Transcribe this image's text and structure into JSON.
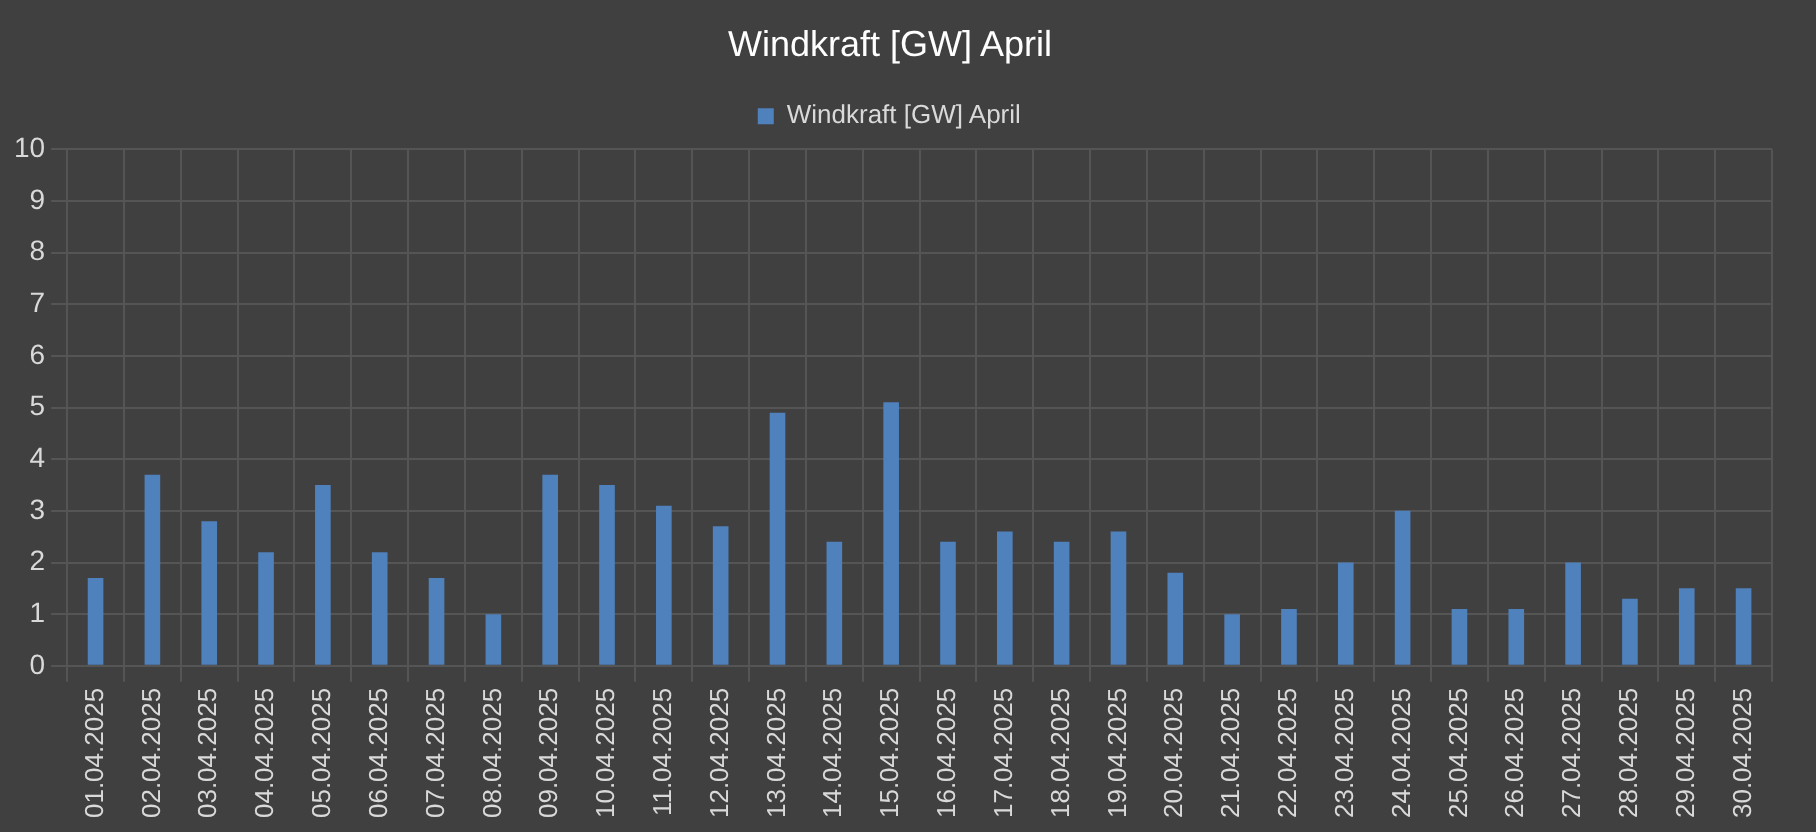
{
  "chart_data": {
    "type": "bar",
    "title": "Windkraft [GW] April",
    "categories": [
      "01.04.2025",
      "02.04.2025",
      "03.04.2025",
      "04.04.2025",
      "05.04.2025",
      "06.04.2025",
      "07.04.2025",
      "08.04.2025",
      "09.04.2025",
      "10.04.2025",
      "11.04.2025",
      "12.04.2025",
      "13.04.2025",
      "14.04.2025",
      "15.04.2025",
      "16.04.2025",
      "17.04.2025",
      "18.04.2025",
      "19.04.2025",
      "20.04.2025",
      "21.04.2025",
      "22.04.2025",
      "23.04.2025",
      "24.04.2025",
      "25.04.2025",
      "26.04.2025",
      "27.04.2025",
      "28.04.2025",
      "29.04.2025",
      "30.04.2025"
    ],
    "series": [
      {
        "name": "Windkraft [GW] April",
        "color": "#4f81bd",
        "values": [
          1.7,
          3.7,
          2.8,
          2.2,
          3.5,
          2.2,
          1.7,
          1.0,
          3.7,
          3.5,
          3.1,
          2.7,
          4.9,
          2.4,
          5.1,
          2.4,
          2.6,
          2.4,
          2.6,
          1.8,
          1.0,
          1.1,
          2.0,
          3.0,
          1.1,
          1.1,
          2.0,
          1.3,
          1.5,
          1.5
        ]
      }
    ],
    "ylim": [
      0,
      10
    ],
    "yticks": [
      0,
      1,
      2,
      3,
      4,
      5,
      6,
      7,
      8,
      9,
      10
    ],
    "grid": true,
    "legend": "top"
  }
}
